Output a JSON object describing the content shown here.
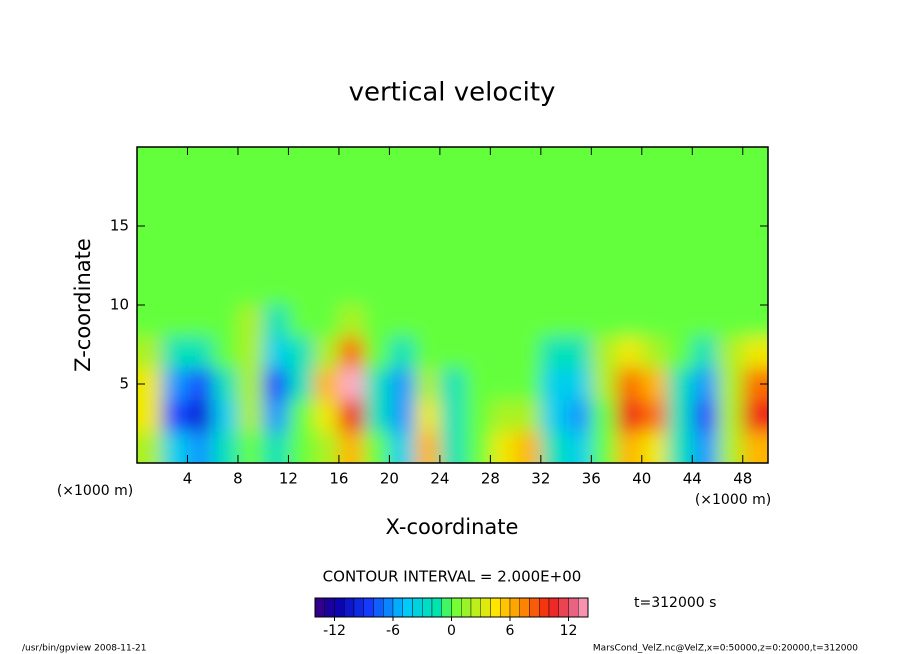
{
  "chart_data": {
    "type": "contour",
    "title": "vertical velocity",
    "x_label": "X-coordinate",
    "y_label": "Z-coordinate",
    "x_unit": "(×1000 m)",
    "y_unit": "(×1000 m)",
    "xlim": [
      0,
      50
    ],
    "ylim": [
      0,
      20
    ],
    "xticks": [
      4,
      8,
      12,
      16,
      20,
      24,
      28,
      32,
      36,
      40,
      44,
      48
    ],
    "yticks": [
      5,
      10,
      15
    ],
    "x": [
      1,
      3,
      5,
      7,
      9,
      11,
      13,
      15,
      17,
      19,
      21,
      23,
      25,
      27,
      29,
      31,
      33,
      35,
      37,
      39,
      41,
      43,
      45,
      47,
      49
    ],
    "y": [
      1,
      3,
      5,
      7,
      9,
      11,
      13,
      15,
      17,
      19
    ],
    "z": [
      [
        2,
        -4,
        -6,
        -2,
        0,
        -2,
        0,
        2,
        6,
        0,
        -4,
        6,
        -2,
        0,
        4,
        6,
        -2,
        -4,
        0,
        6,
        4,
        -2,
        -6,
        2,
        6
      ],
      [
        4,
        -8,
        -10,
        -4,
        2,
        -6,
        0,
        4,
        10,
        -2,
        -6,
        4,
        -2,
        0,
        2,
        2,
        -4,
        -6,
        0,
        10,
        8,
        -2,
        -8,
        2,
        10
      ],
      [
        4,
        -6,
        -8,
        -2,
        2,
        -8,
        -2,
        6,
        14,
        -2,
        -6,
        2,
        -2,
        0,
        0,
        0,
        -4,
        -4,
        2,
        8,
        6,
        -2,
        -6,
        2,
        8
      ],
      [
        2,
        -2,
        -2,
        0,
        2,
        -4,
        -2,
        2,
        8,
        0,
        -2,
        0,
        0,
        0,
        0,
        0,
        -2,
        -2,
        2,
        4,
        2,
        0,
        -2,
        2,
        4
      ],
      [
        0,
        0,
        0,
        0,
        2,
        -2,
        0,
        0,
        2,
        0,
        0,
        0,
        0,
        0,
        0,
        0,
        0,
        0,
        0,
        0,
        0,
        0,
        0,
        0,
        0
      ],
      [
        0,
        0,
        0,
        0,
        0,
        0,
        0,
        0,
        0,
        0,
        0,
        0,
        0,
        0,
        0,
        0,
        0,
        0,
        0,
        0,
        0,
        0,
        0,
        0,
        0
      ],
      [
        0,
        0,
        0,
        0,
        0,
        0,
        0,
        0,
        0,
        0,
        0,
        0,
        0,
        0,
        0,
        0,
        0,
        0,
        0,
        0,
        0,
        0,
        0,
        0,
        0
      ],
      [
        0,
        0,
        0,
        0,
        0,
        0,
        0,
        0,
        0,
        0,
        0,
        0,
        0,
        0,
        0,
        0,
        0,
        0,
        0,
        0,
        0,
        0,
        0,
        0,
        0
      ],
      [
        0,
        0,
        0,
        0,
        0,
        0,
        0,
        0,
        0,
        0,
        0,
        0,
        0,
        0,
        0,
        0,
        0,
        0,
        0,
        0,
        0,
        0,
        0,
        0,
        0
      ],
      [
        0,
        0,
        0,
        0,
        0,
        0,
        0,
        0,
        0,
        0,
        0,
        0,
        0,
        0,
        0,
        0,
        0,
        0,
        0,
        0,
        0,
        0,
        0,
        0,
        0
      ]
    ],
    "clim": [
      -14,
      14
    ],
    "cticks": [
      -12,
      -6,
      0,
      6,
      12
    ],
    "contour_interval": "CONTOUR INTERVAL = 2.000E+00",
    "time_label": "t=312000 s",
    "footer_left": "/usr/bin/gpview  2008-11-21",
    "footer_right": "MarsCond_VelZ.nc@VelZ,x=0:50000,z=0:20000,t=312000"
  }
}
